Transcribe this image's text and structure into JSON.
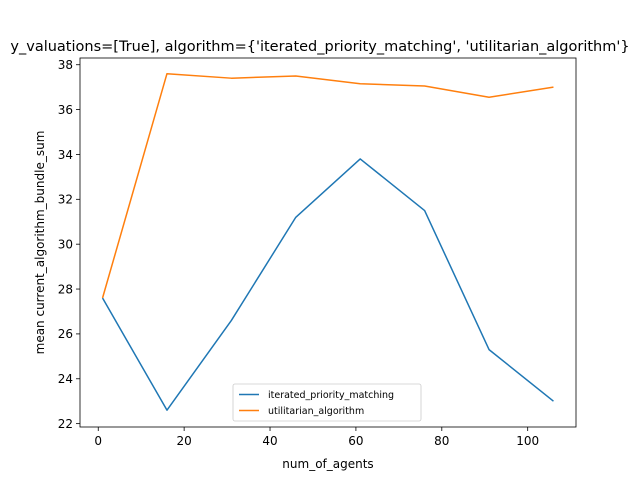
{
  "chart_data": {
    "type": "line",
    "title": "y_valuations=[True], algorithm={'iterated_priority_matching', 'utilitarian_algorithm'}",
    "xlabel": "num_of_agents",
    "ylabel": "mean current_algorithm_bundle_sum",
    "x": [
      1,
      16,
      31,
      46,
      61,
      76,
      91,
      106
    ],
    "xlim": [
      -4.25,
      111.25
    ],
    "ylim": [
      21.85,
      38.3
    ],
    "xticks": [
      0,
      20,
      40,
      60,
      80,
      100
    ],
    "yticks": [
      22,
      24,
      26,
      28,
      30,
      32,
      34,
      36,
      38
    ],
    "grid": false,
    "legend_position": "bottom-center",
    "series": [
      {
        "name": "iterated_priority_matching",
        "color": "#1f77b4",
        "values": [
          27.6,
          22.6,
          26.6,
          31.2,
          33.8,
          31.5,
          25.3,
          23.0
        ]
      },
      {
        "name": "utilitarian_algorithm",
        "color": "#ff7f0e",
        "values": [
          27.6,
          37.6,
          37.4,
          37.5,
          37.15,
          37.05,
          36.55,
          37.0
        ]
      }
    ]
  }
}
